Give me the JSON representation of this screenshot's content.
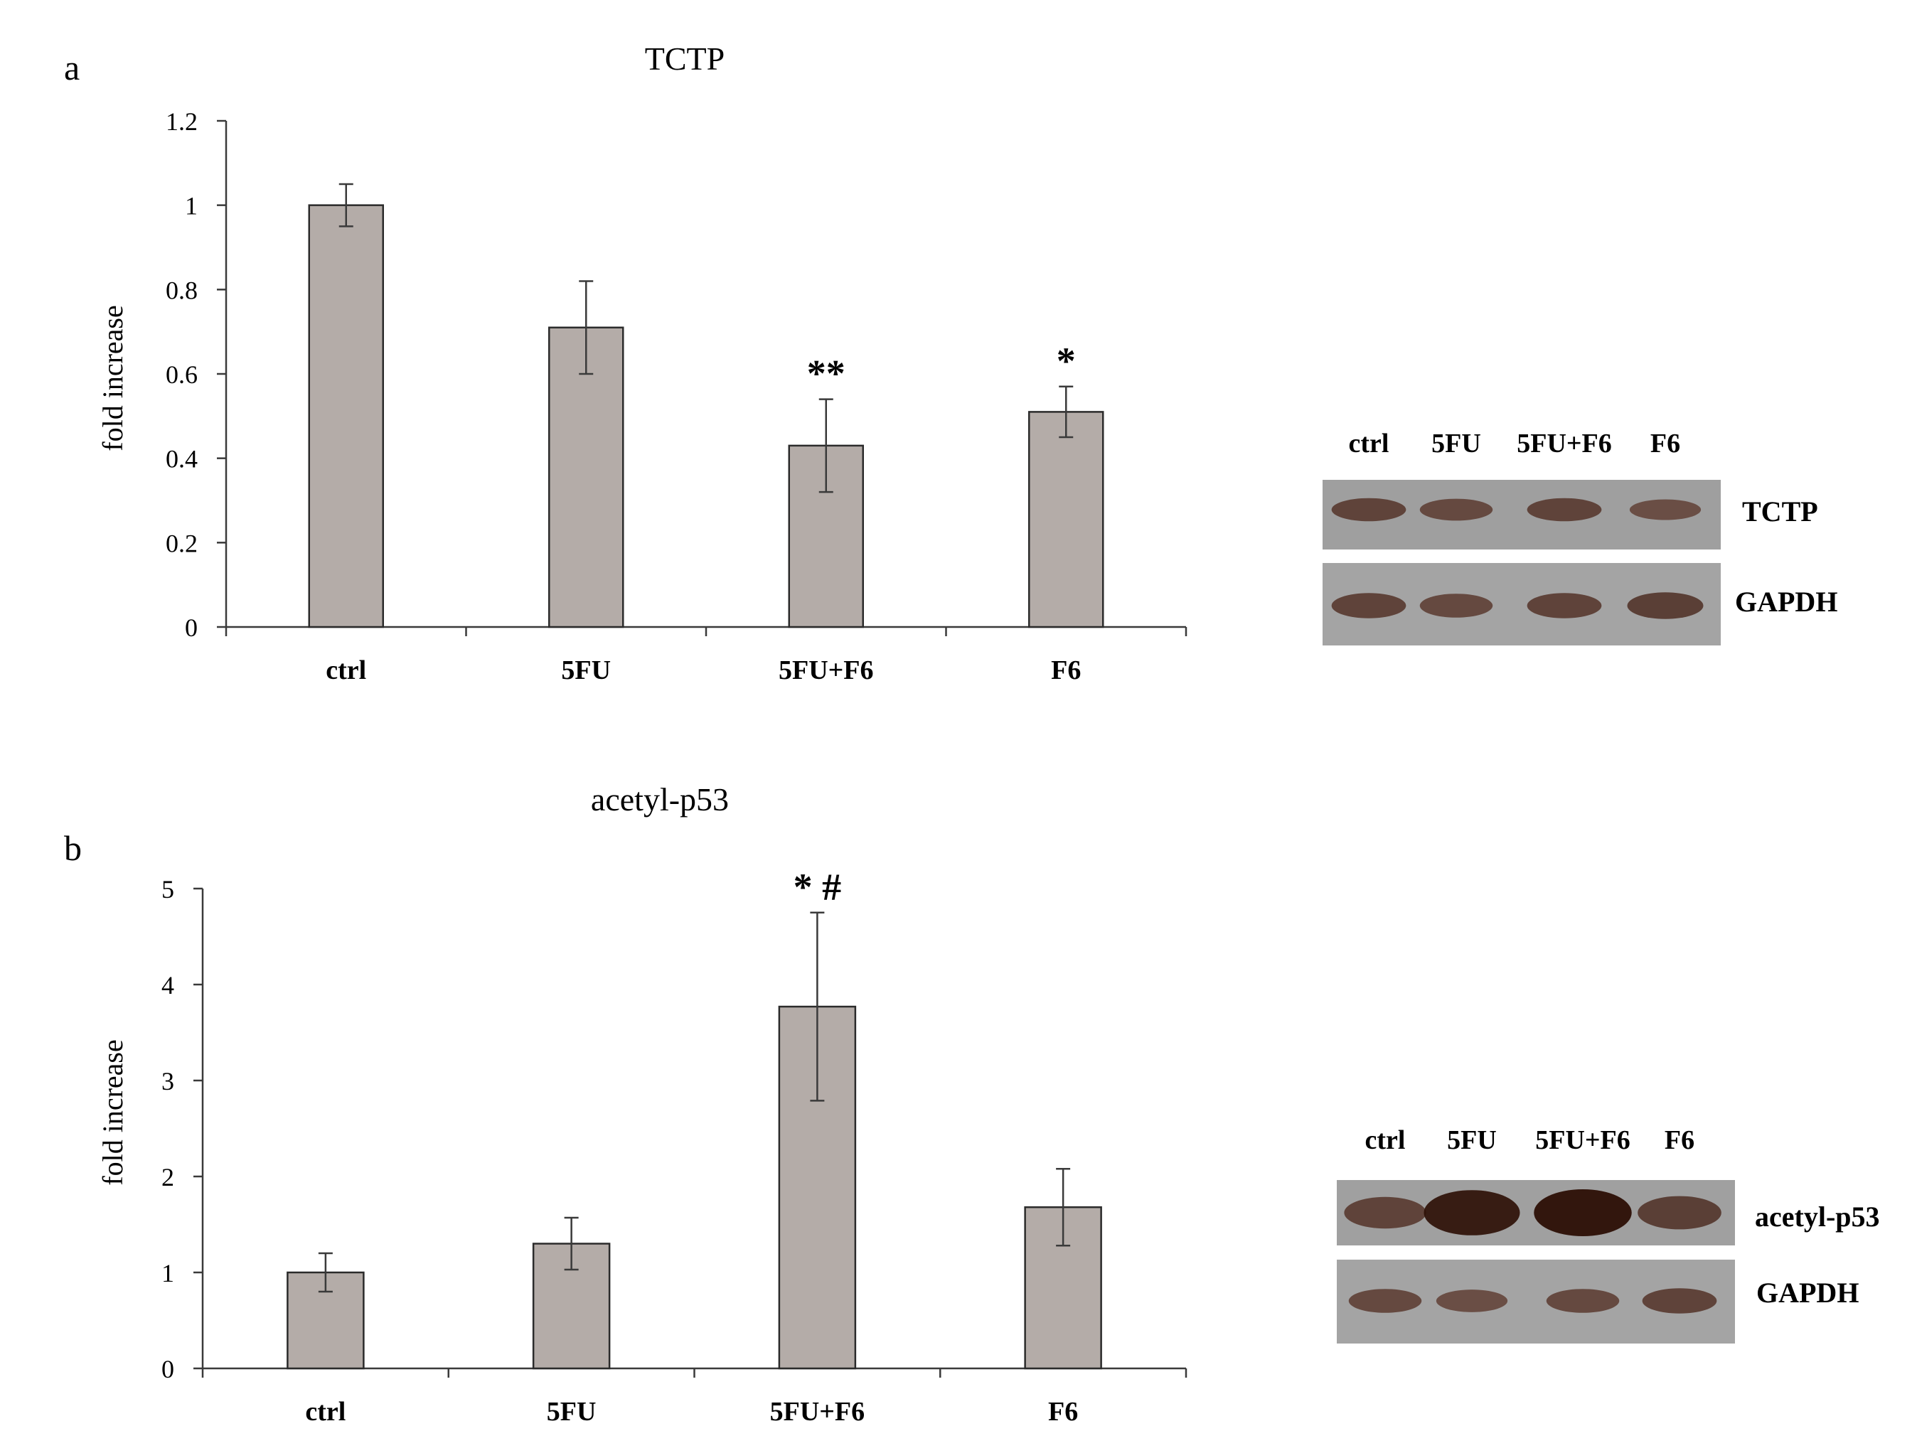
{
  "chart_data": [
    {
      "type": "bar",
      "panel": "a",
      "title": "TCTP",
      "ylabel": "fold increase",
      "xlabel": "",
      "categories": [
        "ctrl",
        "5FU",
        "5FU+F6",
        "F6"
      ],
      "values": [
        1.0,
        0.71,
        0.43,
        0.51
      ],
      "errors": [
        0.05,
        0.11,
        0.11,
        0.06
      ],
      "annotations": [
        "",
        "",
        "**",
        "*"
      ],
      "ylim": [
        0,
        1.2
      ],
      "yticks": [
        "0",
        "0.2",
        "0.4",
        "0.6",
        "0.8",
        "1",
        "1.2"
      ],
      "bar_color": "#b4aca8",
      "grid": false,
      "legend": "none"
    },
    {
      "type": "bar",
      "panel": "b",
      "title": "acetyl-p53",
      "ylabel": "fold increase",
      "xlabel": "",
      "categories": [
        "ctrl",
        "5FU",
        "5FU+F6",
        "F6"
      ],
      "values": [
        1.0,
        1.3,
        3.77,
        1.68
      ],
      "errors": [
        0.2,
        0.27,
        0.98,
        0.4
      ],
      "annotations": [
        "",
        "",
        "* #",
        ""
      ],
      "ylim": [
        0,
        5
      ],
      "yticks": [
        "0",
        "1",
        "2",
        "3",
        "4",
        "5"
      ],
      "bar_color": "#b4aca8",
      "grid": false,
      "legend": "none"
    }
  ],
  "blots": [
    {
      "lanes": [
        "ctrl",
        "5FU",
        "5FU+F6",
        "F6"
      ],
      "rows": [
        {
          "label": "TCTP",
          "intensities": [
            0.55,
            0.5,
            0.55,
            0.45
          ]
        },
        {
          "label": "GAPDH",
          "intensities": [
            0.55,
            0.5,
            0.55,
            0.6
          ]
        }
      ]
    },
    {
      "lanes": [
        "ctrl",
        "5FU",
        "5FU+F6",
        "F6"
      ],
      "rows": [
        {
          "label": "acetyl-p53",
          "intensities": [
            0.55,
            0.95,
            1.0,
            0.6
          ]
        },
        {
          "label": "GAPDH",
          "intensities": [
            0.5,
            0.45,
            0.5,
            0.55
          ]
        }
      ]
    }
  ]
}
